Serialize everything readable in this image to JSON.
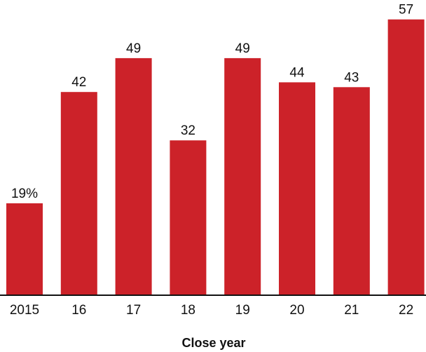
{
  "chart_data": {
    "type": "bar",
    "title": "",
    "xlabel": "Close year",
    "ylabel": "",
    "categories": [
      "2015",
      "16",
      "17",
      "18",
      "19",
      "20",
      "21",
      "22"
    ],
    "values": [
      19,
      42,
      49,
      32,
      49,
      44,
      43,
      57
    ],
    "data_labels": [
      "19%",
      "42",
      "49",
      "32",
      "49",
      "44",
      "43",
      "57"
    ],
    "ylim": [
      0,
      60
    ],
    "grid": false,
    "legend": "none",
    "bar_color": "#cc2229",
    "axis_color": "#111111"
  }
}
